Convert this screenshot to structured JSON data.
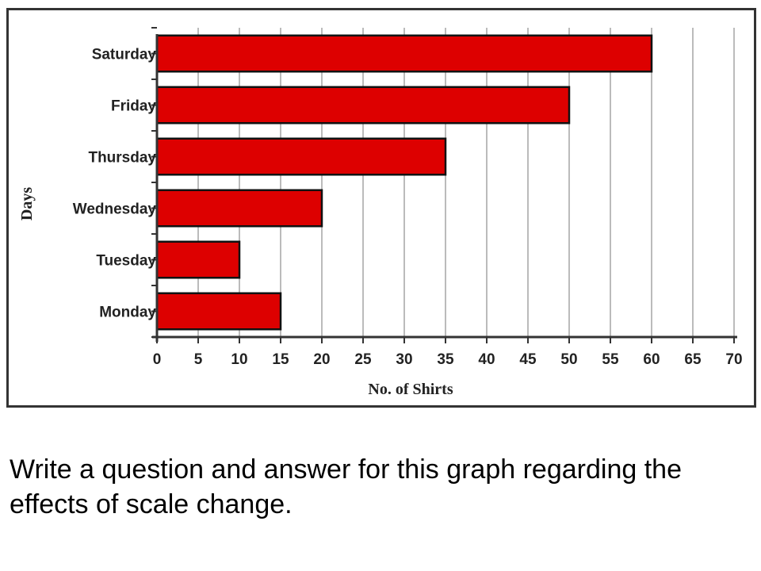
{
  "chart_data": {
    "type": "bar",
    "orientation": "horizontal",
    "categories": [
      "Monday",
      "Tuesday",
      "Wednesday",
      "Thursday",
      "Friday",
      "Saturday"
    ],
    "values": [
      15,
      10,
      20,
      35,
      50,
      60
    ],
    "xlabel": "No. of Shirts",
    "ylabel": "Days",
    "xlim": [
      0,
      70
    ],
    "xticks": [
      "0",
      "5",
      "10",
      "15",
      "20",
      "25",
      "30",
      "35",
      "40",
      "45",
      "50",
      "55",
      "60",
      "65",
      "70"
    ],
    "grid": "vertical",
    "bar_color": "#dd0000",
    "bar_edge_color": "#111111",
    "grid_color": "#bbbbbb"
  },
  "caption": "Write a question and answer for this graph regarding the effects of scale change."
}
